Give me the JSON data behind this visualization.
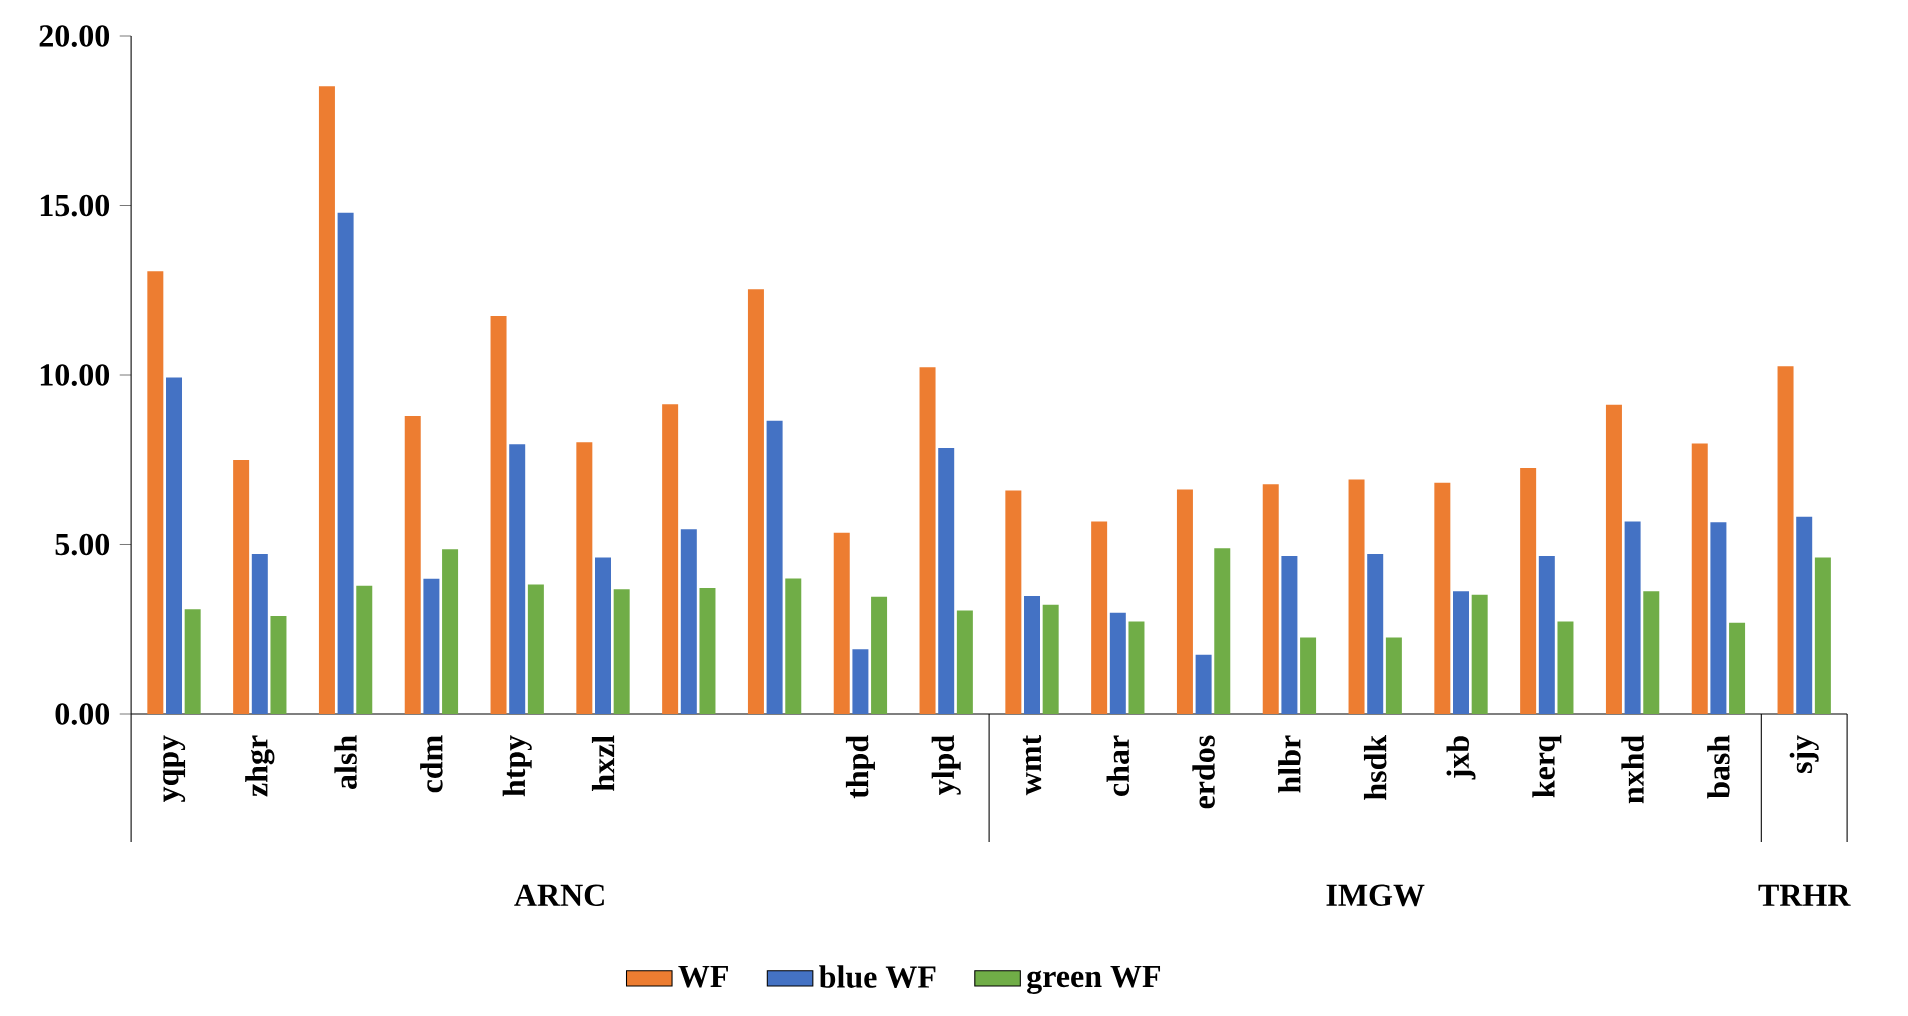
{
  "chart_data": {
    "type": "bar",
    "categories": [
      "yqpy",
      "zhgr",
      "alsh",
      "cdm",
      "htpy",
      "hxzl",
      null,
      null,
      "thpd",
      "ylpd",
      "wmt",
      "char",
      "erdos",
      "hlbr",
      "hsdk",
      "jxb",
      "kerq",
      "nxhd",
      "bash",
      "sjy"
    ],
    "series": [
      {
        "name": "WF",
        "color": "#ed7d31",
        "values": [
          13.06,
          7.49,
          18.52,
          8.79,
          11.74,
          8.02,
          9.14,
          12.53,
          5.35,
          10.23,
          6.59,
          5.68,
          6.62,
          6.78,
          6.92,
          6.82,
          7.26,
          9.12,
          7.98,
          10.26
        ]
      },
      {
        "name": "blue WF",
        "color": "#4472c4",
        "values": [
          9.93,
          4.72,
          14.79,
          3.99,
          7.96,
          4.62,
          5.45,
          8.65,
          1.91,
          7.85,
          3.48,
          2.99,
          1.75,
          4.66,
          4.72,
          3.62,
          4.66,
          5.68,
          5.66,
          5.82
        ]
      },
      {
        "name": "green WF",
        "color": "#70ad47",
        "values": [
          3.09,
          2.89,
          3.78,
          4.86,
          3.82,
          3.68,
          3.72,
          4.0,
          3.46,
          3.05,
          3.22,
          2.73,
          4.89,
          2.26,
          2.26,
          3.52,
          2.73,
          3.62,
          2.69,
          4.62
        ]
      }
    ],
    "ylim": [
      0,
      20
    ],
    "yticks": [
      {
        "value": 0,
        "label": "0.00"
      },
      {
        "value": 5,
        "label": "5.00"
      },
      {
        "value": 10,
        "label": "10.00"
      },
      {
        "value": 15,
        "label": "15.00"
      },
      {
        "value": 20,
        "label": "20.00"
      }
    ],
    "annotations": [
      "ARNC",
      "IMGW",
      "TRHR"
    ],
    "legend": "bottom",
    "grid": false
  }
}
